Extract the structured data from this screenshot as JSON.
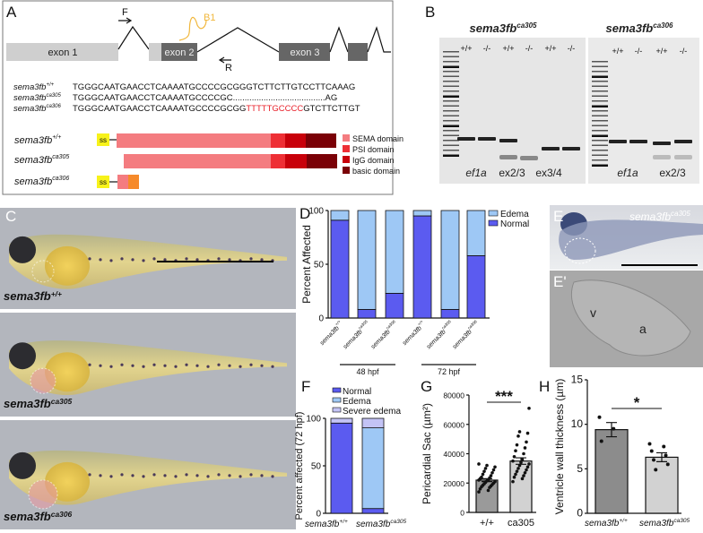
{
  "panels": {
    "a": "A",
    "b": "B",
    "c": "C",
    "d": "D",
    "e": "E",
    "e_prime": "E'",
    "f": "F",
    "g": "G",
    "h": "H"
  },
  "panel_a": {
    "exons": [
      "exon 1",
      "exon 2",
      "exon 3"
    ],
    "primer_f": "F",
    "primer_r": "R",
    "guide": "B1",
    "sequences": [
      {
        "gene": "sema3fb",
        "sup": "+/+",
        "seq": "TGGGCAATGAACCTCAAAATGCCCCGCGGGTCTTCTTGTCCTTCAAAG",
        "insert": "",
        "tail": ""
      },
      {
        "gene": "sema3fb",
        "sup": "ca305",
        "seq": "TGGGCAATGAACCTCAAAATGCCCCGC.......................................AG",
        "insert": "",
        "tail": ""
      },
      {
        "gene": "sema3fb",
        "sup": "ca306",
        "seq": "TGGGCAATGAACCTCAAAATGCCCCGCGG",
        "insert": "TTTTTGCCCC",
        "tail": "GTCTTCTTGT"
      }
    ],
    "proteins": [
      {
        "gene": "sema3fb",
        "sup": "+/+",
        "ss": "ss"
      },
      {
        "gene": "sema3fb",
        "sup": "ca305",
        "ss": ""
      },
      {
        "gene": "sema3fb",
        "sup": "ca306",
        "ss": "ss"
      }
    ],
    "legend": [
      {
        "label": "SEMA domain",
        "color": "#f47c80"
      },
      {
        "label": "PSI domain",
        "color": "#ee2f35"
      },
      {
        "label": "IgG domain",
        "color": "#c8000a"
      },
      {
        "label": "basic domain",
        "color": "#7a0006"
      }
    ],
    "insert_color": "#e8202a"
  },
  "panel_b": {
    "gels": [
      {
        "title_gene": "sema3fb",
        "title_sup": "ca305",
        "lanes": [
          "+/+",
          "-/-",
          "+/+",
          "-/-",
          "+/+",
          "-/-"
        ],
        "primers": [
          "ef1a",
          "ex2/3",
          "ex3/4"
        ]
      },
      {
        "title_gene": "sema3fb",
        "title_sup": "ca306",
        "lanes": [
          "+/+",
          "-/-",
          "+/+",
          "-/-"
        ],
        "primers": [
          "ef1a",
          "ex2/3"
        ]
      }
    ]
  },
  "panel_c": {
    "labels": [
      {
        "gene": "sema3fb",
        "sup": "+/+"
      },
      {
        "gene": "sema3fb",
        "sup": "ca305"
      },
      {
        "gene": "sema3fb",
        "sup": "ca306"
      }
    ]
  },
  "panel_e": {
    "gene": "sema3fb",
    "sup": "ca305",
    "v": "v",
    "a": "a"
  },
  "chart_data": [
    {
      "id": "D",
      "type": "bar",
      "stacked": true,
      "ylabel": "Percent Affected",
      "ylim": [
        0,
        100
      ],
      "yticks": [
        "0",
        "50",
        "100"
      ],
      "categories": [
        {
          "gene": "sema3fb",
          "sup": "+/+"
        },
        {
          "gene": "sema3fb",
          "sup": "ca305"
        },
        {
          "gene": "sema3fb",
          "sup": "ca306"
        },
        {
          "gene": "sema3fb",
          "sup": "+/+"
        },
        {
          "gene": "sema3fb",
          "sup": "ca305"
        },
        {
          "gene": "sema3fb",
          "sup": "ca306"
        }
      ],
      "groups": [
        "48 hpf",
        "72 hpf"
      ],
      "series": [
        {
          "name": "Normal",
          "color": "#5b5bf0",
          "values": [
            91,
            8,
            23,
            95,
            8,
            58
          ]
        },
        {
          "name": "Edema",
          "color": "#9ec8f5",
          "values": [
            9,
            92,
            77,
            5,
            92,
            42
          ]
        }
      ],
      "legend_order": [
        "Edema",
        "Normal"
      ],
      "legend": "top-right"
    },
    {
      "id": "F",
      "type": "bar",
      "stacked": true,
      "ylabel": "Percent affected (72 hpf)",
      "ylim": [
        0,
        100
      ],
      "yticks": [
        "0",
        "50",
        "100"
      ],
      "categories": [
        {
          "gene": "sema3fb",
          "sup": "+/+"
        },
        {
          "gene": "sema3fb",
          "sup": "ca305"
        }
      ],
      "series": [
        {
          "name": "Normal",
          "color": "#5b5bf0",
          "values": [
            95,
            5
          ]
        },
        {
          "name": "Edema",
          "color": "#9ec8f5",
          "values": [
            0,
            85
          ]
        },
        {
          "name": "Severe edema",
          "color": "#c3c3f5",
          "values": [
            5,
            10
          ]
        }
      ],
      "legend": "top"
    },
    {
      "id": "G",
      "type": "bar",
      "ylabel": "Pericardial Sac (µm²)",
      "ylim": [
        0,
        80000
      ],
      "yticks": [
        "0",
        "20000",
        "40000",
        "60000",
        "80000"
      ],
      "categories": [
        "+/+",
        "ca305"
      ],
      "values": [
        22000,
        35000
      ],
      "sem": [
        1000,
        2200
      ],
      "colors": [
        "#9a9a9a",
        "#d2d2d2"
      ],
      "points": [
        [
          14000,
          15000,
          16000,
          17000,
          17500,
          18000,
          18500,
          19000,
          19500,
          20000,
          20500,
          21000,
          21500,
          22000,
          22000,
          23000,
          23500,
          24000,
          25000,
          26000,
          27000,
          28000,
          29000,
          30000,
          31000,
          32000,
          33000
        ],
        [
          21000,
          23000,
          24000,
          25000,
          26000,
          27000,
          28000,
          29000,
          30000,
          31000,
          32000,
          33000,
          34000,
          35000,
          36000,
          38000,
          40000,
          42000,
          44000,
          46000,
          48000,
          52000,
          54000,
          55000,
          71000
        ]
      ],
      "significance": "***"
    },
    {
      "id": "H",
      "type": "bar",
      "ylabel": "Ventricle wall thickness (µm)",
      "ylim": [
        0,
        15
      ],
      "yticks": [
        "0",
        "5",
        "10",
        "15"
      ],
      "categories": [
        {
          "gene": "sema3fb",
          "sup": "+/+"
        },
        {
          "gene": "sema3fb",
          "sup": "ca305"
        }
      ],
      "values": [
        9.4,
        6.3
      ],
      "sem": [
        0.8,
        0.5
      ],
      "colors": [
        "#8c8c8c",
        "#d2d2d2"
      ],
      "points": [
        [
          10.8,
          9.5,
          8.1
        ],
        [
          7.8,
          7.5,
          7.0,
          6.5,
          6.0,
          5.5,
          4.9
        ]
      ],
      "significance": "*"
    }
  ]
}
